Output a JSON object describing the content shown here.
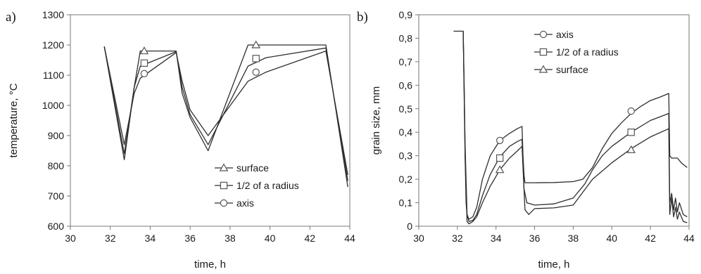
{
  "chart_data": [
    {
      "panel_label": "a)",
      "type": "line",
      "xlabel": "time, h",
      "ylabel": "temperature, °C",
      "xlim": [
        30,
        44
      ],
      "ylim": [
        600,
        1300
      ],
      "xticks": [
        30,
        32,
        34,
        36,
        38,
        40,
        42,
        44
      ],
      "yticks": [
        600,
        700,
        800,
        900,
        1000,
        1100,
        1200,
        1300
      ],
      "xtick_labels": [
        "30",
        "32",
        "34",
        "36",
        "38",
        "40",
        "42",
        "44"
      ],
      "ytick_labels": [
        "600",
        "700",
        "800",
        "900",
        "1000",
        "1100",
        "1200",
        "1300"
      ],
      "grid": false,
      "legend_position": "lower-center",
      "series": [
        {
          "name": "surface",
          "marker": "triangle",
          "x": [
            31.7,
            32.7,
            33.2,
            33.5,
            35.3,
            35.6,
            36.0,
            36.9,
            38.9,
            42.8,
            43.9
          ],
          "y": [
            1195,
            820,
            1060,
            1180,
            1180,
            1040,
            960,
            850,
            1200,
            1200,
            730
          ],
          "marker_points": [
            [
              33.7,
              1180
            ],
            [
              39.3,
              1200
            ]
          ]
        },
        {
          "name": "1/2 of a radius",
          "marker": "square",
          "x": [
            31.7,
            32.7,
            33.2,
            33.5,
            35.3,
            35.6,
            36.0,
            36.9,
            38.9,
            39.8,
            42.8,
            43.9
          ],
          "y": [
            1195,
            840,
            1060,
            1130,
            1178,
            1060,
            970,
            870,
            1130,
            1158,
            1190,
            750
          ],
          "marker_points": [
            [
              33.7,
              1140
            ],
            [
              39.3,
              1155
            ]
          ]
        },
        {
          "name": "axis",
          "marker": "circle",
          "x": [
            31.7,
            32.7,
            33.2,
            33.5,
            35.3,
            35.6,
            36.0,
            36.9,
            38.9,
            39.8,
            42.8,
            43.9
          ],
          "y": [
            1195,
            870,
            1040,
            1090,
            1175,
            1080,
            985,
            900,
            1080,
            1110,
            1180,
            770
          ],
          "marker_points": [
            [
              33.7,
              1105
            ],
            [
              39.3,
              1110
            ]
          ]
        }
      ]
    },
    {
      "panel_label": "b)",
      "type": "line",
      "xlabel": "time, h",
      "ylabel": "grain size, mm",
      "xlim": [
        30,
        44
      ],
      "ylim": [
        0,
        0.9
      ],
      "xticks": [
        30,
        32,
        34,
        36,
        38,
        40,
        42,
        44
      ],
      "yticks": [
        0,
        0.1,
        0.2,
        0.3,
        0.4,
        0.5,
        0.6,
        0.7,
        0.8,
        0.9
      ],
      "xtick_labels": [
        "30",
        "32",
        "34",
        "36",
        "38",
        "40",
        "42",
        "44"
      ],
      "ytick_labels": [
        "0",
        "0,1",
        "0,2",
        "0,3",
        "0,4",
        "0,5",
        "0,6",
        "0,7",
        "0,8",
        "0,9"
      ],
      "grid": false,
      "legend_position": "top-center",
      "series": [
        {
          "name": "axis",
          "marker": "circle",
          "x": [
            31.8,
            32.3,
            32.35,
            32.4,
            32.45,
            32.5,
            32.6,
            32.8,
            33.0,
            33.3,
            33.7,
            34.2,
            34.7,
            35.1,
            35.35,
            35.4,
            35.45,
            35.5,
            35.7,
            36.0,
            37.0,
            38.0,
            38.5,
            39.0,
            39.5,
            40.0,
            40.5,
            41.0,
            41.5,
            42.0,
            42.5,
            42.95,
            43.0,
            43.1,
            43.4,
            43.6,
            43.9
          ],
          "y": [
            0.83,
            0.83,
            0.6,
            0.3,
            0.1,
            0.05,
            0.03,
            0.04,
            0.08,
            0.2,
            0.3,
            0.365,
            0.395,
            0.415,
            0.425,
            0.3,
            0.22,
            0.185,
            0.185,
            0.185,
            0.186,
            0.19,
            0.2,
            0.25,
            0.33,
            0.395,
            0.44,
            0.48,
            0.51,
            0.535,
            0.55,
            0.565,
            0.3,
            0.29,
            0.29,
            0.27,
            0.25
          ],
          "marker_points": [
            [
              34.2,
              0.365
            ],
            [
              41.0,
              0.49
            ]
          ]
        },
        {
          "name": "1/2 of a radius",
          "marker": "square",
          "x": [
            32.3,
            32.4,
            32.5,
            32.6,
            32.8,
            33.0,
            33.3,
            33.7,
            34.2,
            34.7,
            35.1,
            35.35,
            35.45,
            35.6,
            36.0,
            37.0,
            38.0,
            38.6,
            39.0,
            39.5,
            40.0,
            41.0,
            42.0,
            42.95,
            43.0,
            43.1,
            43.2,
            43.3,
            43.4,
            43.5,
            43.7,
            43.9
          ],
          "y": [
            0.83,
            0.35,
            0.05,
            0.02,
            0.025,
            0.05,
            0.13,
            0.22,
            0.295,
            0.34,
            0.36,
            0.37,
            0.16,
            0.1,
            0.09,
            0.095,
            0.12,
            0.18,
            0.24,
            0.3,
            0.34,
            0.4,
            0.45,
            0.48,
            0.1,
            0.14,
            0.07,
            0.12,
            0.06,
            0.1,
            0.05,
            0.04
          ],
          "marker_points": [
            [
              34.2,
              0.29
            ],
            [
              41.0,
              0.4
            ]
          ]
        },
        {
          "name": "surface",
          "marker": "triangle",
          "x": [
            32.3,
            32.4,
            32.5,
            32.6,
            32.8,
            33.0,
            33.3,
            33.7,
            34.2,
            34.7,
            35.1,
            35.35,
            35.5,
            35.7,
            36.0,
            37.0,
            38.0,
            39.0,
            40.0,
            41.0,
            42.0,
            42.95,
            43.0,
            43.1,
            43.2,
            43.3,
            43.4,
            43.5,
            43.7,
            43.9
          ],
          "y": [
            0.83,
            0.3,
            0.02,
            0.01,
            0.02,
            0.04,
            0.1,
            0.17,
            0.24,
            0.29,
            0.32,
            0.34,
            0.07,
            0.05,
            0.075,
            0.078,
            0.09,
            0.2,
            0.27,
            0.33,
            0.38,
            0.415,
            0.05,
            0.12,
            0.04,
            0.08,
            0.03,
            0.06,
            0.02,
            0.015
          ],
          "marker_points": [
            [
              34.2,
              0.24
            ],
            [
              41.0,
              0.325
            ]
          ]
        }
      ]
    }
  ]
}
